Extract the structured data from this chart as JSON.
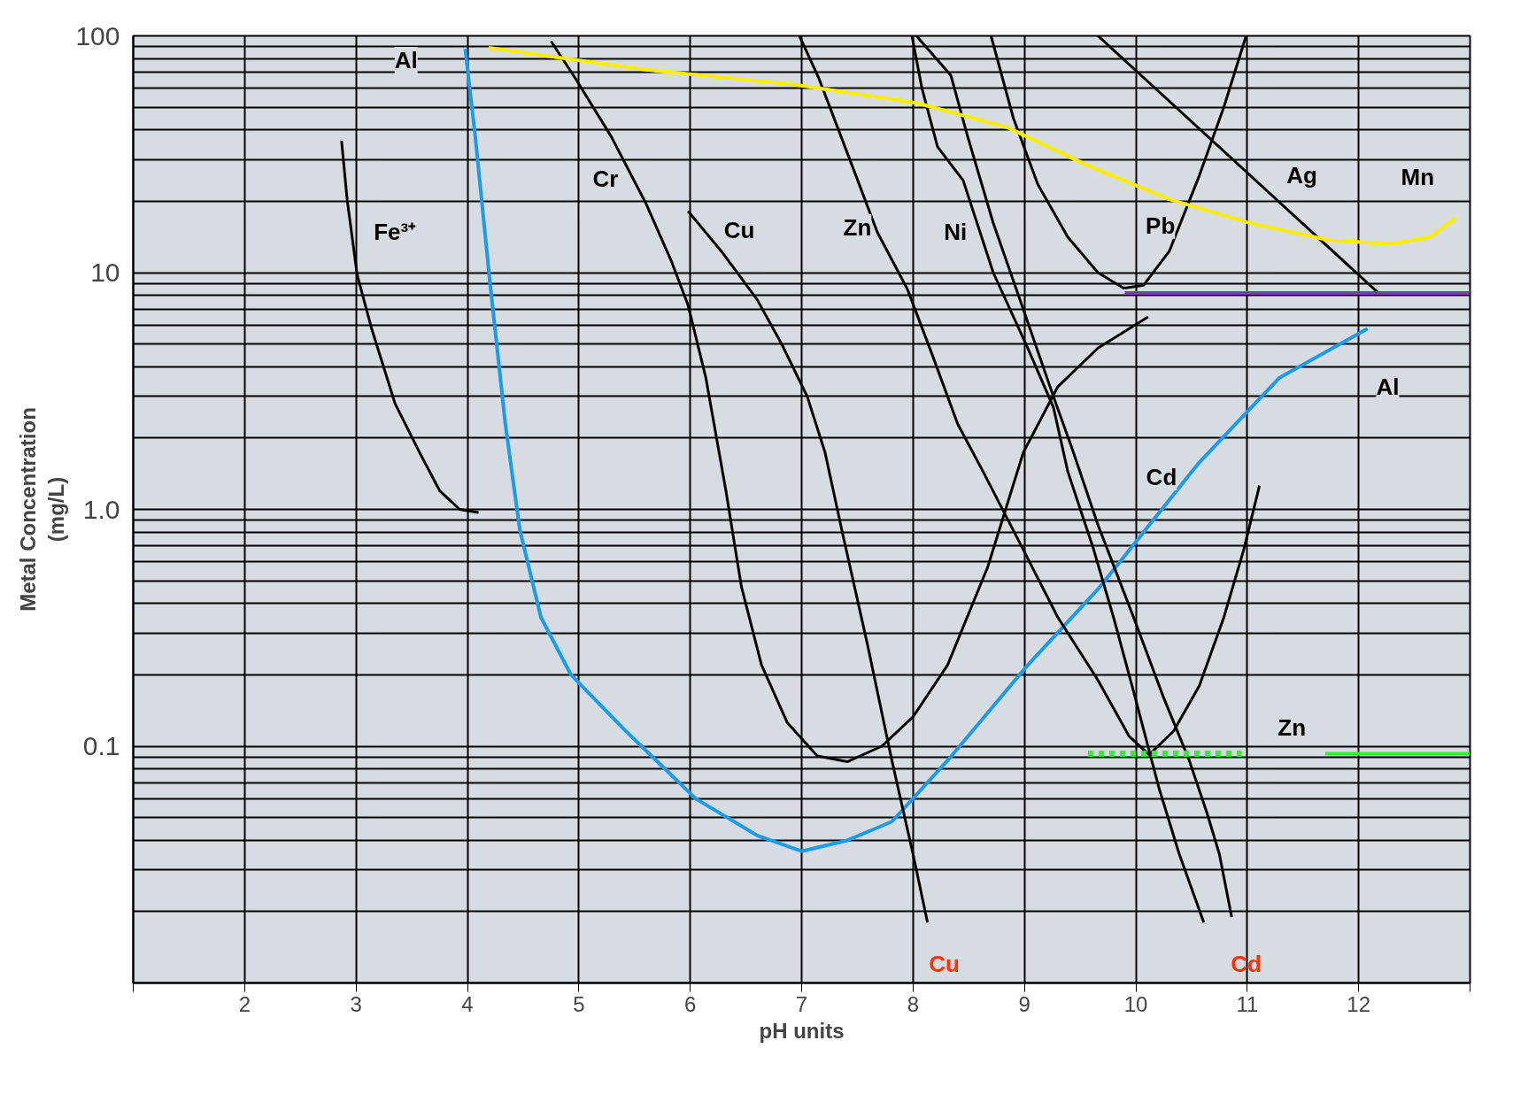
{
  "chart_data": {
    "type": "line",
    "xlabel": "pH units",
    "ylabel": "Metal Concentration\n(mg/L)",
    "log": "y",
    "grid": true,
    "marker": "none",
    "line_style": "solid",
    "xlim": [
      1,
      13
    ],
    "xticks": [
      {
        "value": 1,
        "label": null
      },
      2,
      3,
      4,
      5,
      6,
      7,
      8,
      9,
      10,
      11,
      12,
      {
        "value": 13,
        "label": null
      }
    ],
    "ylim": [
      0.01,
      100
    ],
    "yticks": [
      {
        "value": 0.01,
        "label": null
      },
      {
        "value": 0.1,
        "label": "0.1"
      },
      {
        "value": 1,
        "label": "1.0"
      },
      10,
      100
    ],
    "series": [
      {
        "color": "#000000",
        "x": [
          2.87,
          2.92,
          3.01,
          3.14,
          3.35,
          3.57,
          3.75,
          3.93,
          4.1
        ],
        "values": [
          36,
          20.4,
          9.8,
          5.8,
          2.8,
          1.74,
          1.2,
          1.0,
          0.97
        ]
      },
      {
        "color": "#1e9be8",
        "x": [
          3.98,
          4.07,
          4.2,
          4.34,
          4.47,
          4.66,
          4.93,
          5.42,
          6.05,
          6.6,
          7.0,
          7.41,
          7.81,
          8.31,
          9.03,
          9.66,
          10.57,
          11.29,
          12.08
        ],
        "values": [
          88,
          37.6,
          9.3,
          2.3,
          0.82,
          0.35,
          0.2,
          0.116,
          0.06,
          0.042,
          0.036,
          0.04,
          0.048,
          0.087,
          0.22,
          0.46,
          1.58,
          3.6,
          5.8
        ]
      },
      {
        "color": "#000000",
        "x": [
          4.75,
          4.97,
          5.29,
          5.6,
          5.83,
          5.98,
          6.14,
          6.32,
          6.46,
          6.64,
          6.87,
          7.14,
          7.41,
          7.72,
          8.0,
          8.31,
          8.67,
          8.99,
          9.3,
          9.66,
          10.11
        ],
        "values": [
          95,
          66,
          37.6,
          19.7,
          11.2,
          7.3,
          3.6,
          1.2,
          0.47,
          0.22,
          0.126,
          0.091,
          0.086,
          0.1,
          0.133,
          0.22,
          0.57,
          1.74,
          3.3,
          4.8,
          6.5
        ]
      },
      {
        "color": "#000000",
        "x": [
          5.98,
          6.28,
          6.6,
          6.82,
          7.05,
          7.21,
          7.36,
          7.59,
          7.81,
          8.0,
          8.13
        ],
        "values": [
          18.2,
          12.3,
          7.7,
          5.0,
          3.0,
          1.74,
          0.82,
          0.27,
          0.087,
          0.035,
          0.018
        ]
      },
      {
        "color": "#000000",
        "x": [
          6.98,
          7.15,
          7.41,
          7.68,
          7.95,
          8.18,
          8.4,
          8.63,
          8.94,
          9.3,
          9.66,
          9.94,
          10.12,
          10.34,
          10.57,
          10.79,
          10.97,
          11.11
        ],
        "values": [
          100,
          67,
          32,
          14.8,
          8.5,
          4.4,
          2.3,
          1.44,
          0.75,
          0.35,
          0.19,
          0.11,
          0.092,
          0.116,
          0.18,
          0.35,
          0.68,
          1.26
        ]
      },
      {
        "color": "#000000",
        "x": [
          7.99,
          8.08,
          8.22,
          8.45,
          8.72,
          9.03,
          9.26,
          9.39,
          9.62,
          9.8,
          9.98,
          10.21,
          10.39,
          10.61
        ],
        "values": [
          100,
          60,
          34,
          24.5,
          10,
          4.8,
          2.7,
          1.44,
          0.68,
          0.35,
          0.17,
          0.066,
          0.035,
          0.018
        ]
      },
      {
        "color": "#000000",
        "x": [
          8.03,
          8.34,
          8.49,
          8.72,
          8.99,
          9.26,
          9.44,
          9.66,
          9.98,
          10.25,
          10.48,
          10.64,
          10.75,
          10.86
        ],
        "values": [
          100,
          68,
          37.6,
          16.2,
          7.0,
          3.0,
          1.74,
          0.86,
          0.35,
          0.16,
          0.087,
          0.052,
          0.035,
          0.019
        ]
      },
      {
        "color": "#000000",
        "x": [
          8.7,
          8.9,
          9.12,
          9.39,
          9.66,
          9.89,
          10.07,
          10.3,
          10.57,
          10.79,
          10.99
        ],
        "values": [
          100,
          45,
          23.6,
          14.1,
          10,
          8.6,
          8.85,
          12.3,
          25.7,
          50,
          100
        ]
      },
      {
        "color": "#000000",
        "x": [
          9.66,
          12.19
        ],
        "values": [
          100,
          8.1
        ]
      },
      {
        "color": "#ffee00",
        "x": [
          4.19,
          5.6,
          6.96,
          8.04,
          8.85,
          9.57,
          10.3,
          11.02,
          11.74,
          12.28,
          12.64,
          12.87
        ],
        "values": [
          89,
          72,
          62,
          52,
          41,
          28.3,
          20.4,
          16.2,
          13.7,
          13.2,
          14.1,
          17
        ]
      },
      {
        "color": "#7b3fa8",
        "x": [
          9.9,
          13
        ],
        "values": [
          8.2,
          8.2
        ]
      },
      {
        "color": "#33ee33",
        "line_style": "dotted",
        "x": [
          9.57,
          10.95
        ],
        "values": [
          0.093,
          0.093
        ]
      },
      {
        "color": "#33ee33",
        "x": [
          11.7,
          13
        ],
        "values": [
          0.093,
          0.093
        ]
      }
    ],
    "annotations": [
      "Al",
      "Fe³⁺",
      "Cr",
      "Cu",
      "Zn",
      "Ni",
      "Pb",
      "Ag",
      "Mn",
      "Al",
      "Cd",
      "Zn",
      "Cu",
      "Cd"
    ]
  }
}
